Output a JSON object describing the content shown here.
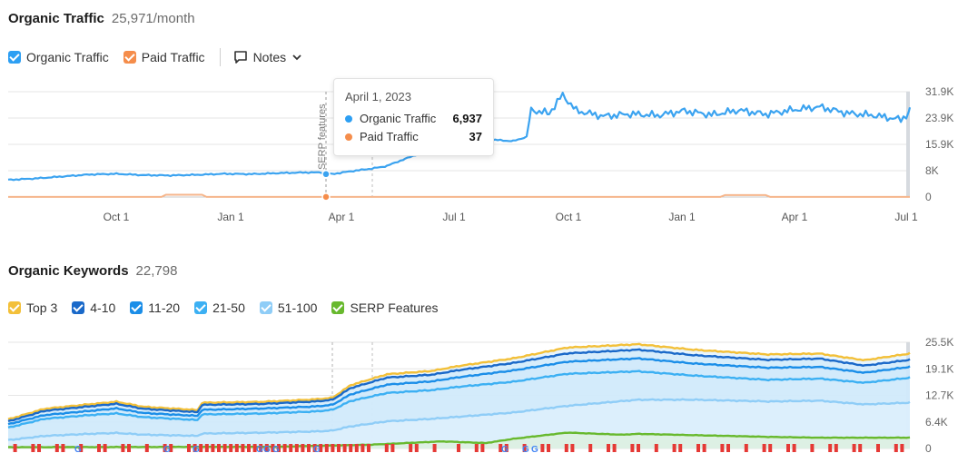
{
  "traffic": {
    "title": "Organic Traffic",
    "summary": "25,971/month",
    "legend": [
      {
        "label": "Organic Traffic",
        "color": "#2d9ff3"
      },
      {
        "label": "Paid Traffic",
        "color": "#f58d4b"
      }
    ],
    "notes_label": "Notes",
    "annotation_label": "SERP features",
    "tooltip": {
      "date": "April 1, 2023",
      "rows": [
        {
          "label": "Organic Traffic",
          "value": "6,937",
          "color": "#2d9ff3"
        },
        {
          "label": "Paid Traffic",
          "value": "37",
          "color": "#f58d4b"
        }
      ]
    }
  },
  "keywords": {
    "title": "Organic Keywords",
    "summary": "22,798",
    "legend": [
      {
        "label": "Top 3",
        "color": "#f3c039"
      },
      {
        "label": "4-10",
        "color": "#1a69c9"
      },
      {
        "label": "11-20",
        "color": "#1b8ee8"
      },
      {
        "label": "21-50",
        "color": "#3cb0f3"
      },
      {
        "label": "51-100",
        "color": "#8fcdf7"
      },
      {
        "label": "SERP Features",
        "color": "#68b92e"
      }
    ]
  },
  "chart_data": [
    {
      "type": "line",
      "title": "Organic Traffic",
      "x_ticks": [
        "Oct 1",
        "Jan 1",
        "Apr 1",
        "Jul 1",
        "Oct 1",
        "Jan 1",
        "Apr 1",
        "Jul 1"
      ],
      "y_ticks": [
        "31.9K",
        "23.9K",
        "15.9K",
        "8K",
        "0"
      ],
      "ylim": [
        0,
        31900
      ],
      "grid": true,
      "series": [
        {
          "name": "Organic Traffic",
          "color": "#3ba3f0",
          "points": [
            [
              0,
              5200
            ],
            [
              30,
              5600
            ],
            [
              60,
              6200
            ],
            [
              90,
              6800
            ],
            [
              120,
              7000
            ],
            [
              150,
              6600
            ],
            [
              180,
              6500
            ],
            [
              210,
              6700
            ],
            [
              240,
              7000
            ],
            [
              270,
              6900
            ],
            [
              300,
              7200
            ],
            [
              330,
              7400
            ],
            [
              350,
              7400
            ],
            [
              359,
              6937
            ],
            [
              380,
              7800
            ],
            [
              400,
              8500
            ],
            [
              420,
              9400
            ],
            [
              440,
              11500
            ],
            [
              460,
              13600
            ],
            [
              480,
              15300
            ],
            [
              500,
              16200
            ],
            [
              520,
              17000
            ],
            [
              540,
              17300
            ],
            [
              560,
              16900
            ],
            [
              575,
              18200
            ],
            [
              580,
              26500
            ],
            [
              600,
              25500
            ],
            [
              615,
              31000
            ],
            [
              630,
              26200
            ],
            [
              660,
              24600
            ],
            [
              690,
              25300
            ],
            [
              720,
              24900
            ],
            [
              750,
              26300
            ],
            [
              780,
              25100
            ],
            [
              810,
              26500
            ],
            [
              840,
              25300
            ],
            [
              870,
              26600
            ],
            [
              900,
              27500
            ],
            [
              930,
              25600
            ],
            [
              960,
              24900
            ],
            [
              990,
              23600
            ],
            [
              1000,
              25900
            ]
          ]
        },
        {
          "name": "Paid Traffic",
          "color": "#f58d4b",
          "points": [
            [
              0,
              30
            ],
            [
              170,
              40
            ],
            [
              175,
              700
            ],
            [
              215,
              700
            ],
            [
              220,
              40
            ],
            [
              359,
              37
            ],
            [
              790,
              40
            ],
            [
              795,
              600
            ],
            [
              840,
              600
            ],
            [
              845,
              40
            ],
            [
              1000,
              50
            ]
          ]
        }
      ]
    },
    {
      "type": "area",
      "title": "Organic Keywords",
      "x_ticks": [],
      "y_ticks": [
        "25.5K",
        "19.1K",
        "12.7K",
        "6.4K",
        "0"
      ],
      "ylim": [
        0,
        25500
      ],
      "grid": true,
      "series": [
        {
          "name": "Top 3",
          "color": "#f3c039",
          "points": [
            [
              0,
              7000
            ],
            [
              40,
              9500
            ],
            [
              90,
              10600
            ],
            [
              120,
              11200
            ],
            [
              150,
              10000
            ],
            [
              210,
              9200
            ],
            [
              215,
              11000
            ],
            [
              280,
              11200
            ],
            [
              340,
              11800
            ],
            [
              360,
              12200
            ],
            [
              380,
              15200
            ],
            [
              420,
              17800
            ],
            [
              470,
              18600
            ],
            [
              500,
              19800
            ],
            [
              560,
              21600
            ],
            [
              620,
              24200
            ],
            [
              700,
              25000
            ],
            [
              760,
              23700
            ],
            [
              840,
              22600
            ],
            [
              900,
              22800
            ],
            [
              950,
              21200
            ],
            [
              1000,
              22800
            ]
          ]
        },
        {
          "name": "4-10",
          "color": "#1a69c9",
          "points": [
            [
              0,
              6500
            ],
            [
              40,
              9000
            ],
            [
              90,
              10100
            ],
            [
              120,
              10700
            ],
            [
              150,
              9500
            ],
            [
              210,
              8700
            ],
            [
              215,
              10500
            ],
            [
              280,
              10700
            ],
            [
              340,
              11300
            ],
            [
              360,
              11700
            ],
            [
              380,
              14500
            ],
            [
              420,
              17000
            ],
            [
              470,
              17700
            ],
            [
              500,
              18800
            ],
            [
              560,
              20500
            ],
            [
              620,
              22800
            ],
            [
              700,
              23700
            ],
            [
              760,
              22400
            ],
            [
              840,
              21300
            ],
            [
              900,
              21600
            ],
            [
              950,
              19900
            ],
            [
              1000,
              21300
            ]
          ]
        },
        {
          "name": "11-20",
          "color": "#1b8ee8",
          "points": [
            [
              0,
              5800
            ],
            [
              40,
              8000
            ],
            [
              90,
              9000
            ],
            [
              120,
              9600
            ],
            [
              150,
              8500
            ],
            [
              210,
              7800
            ],
            [
              215,
              9300
            ],
            [
              280,
              9600
            ],
            [
              340,
              10100
            ],
            [
              360,
              10500
            ],
            [
              380,
              13000
            ],
            [
              420,
              15300
            ],
            [
              470,
              16100
            ],
            [
              500,
              17100
            ],
            [
              560,
              18700
            ],
            [
              620,
              20800
            ],
            [
              700,
              21600
            ],
            [
              760,
              20400
            ],
            [
              840,
              19400
            ],
            [
              900,
              19600
            ],
            [
              950,
              18200
            ],
            [
              1000,
              19600
            ]
          ]
        },
        {
          "name": "21-50",
          "color": "#3cb0f3",
          "points": [
            [
              0,
              5000
            ],
            [
              40,
              7100
            ],
            [
              90,
              8000
            ],
            [
              120,
              8400
            ],
            [
              150,
              7500
            ],
            [
              210,
              6800
            ],
            [
              215,
              8200
            ],
            [
              280,
              8400
            ],
            [
              340,
              8900
            ],
            [
              360,
              9300
            ],
            [
              380,
              11400
            ],
            [
              420,
              13300
            ],
            [
              470,
              14000
            ],
            [
              500,
              14800
            ],
            [
              560,
              16000
            ],
            [
              620,
              17900
            ],
            [
              700,
              18500
            ],
            [
              760,
              17500
            ],
            [
              840,
              16500
            ],
            [
              900,
              16800
            ],
            [
              950,
              15800
            ],
            [
              1000,
              17000
            ]
          ]
        },
        {
          "name": "51-100",
          "color": "#8fcdf7",
          "points": [
            [
              0,
              2000
            ],
            [
              40,
              3000
            ],
            [
              90,
              3500
            ],
            [
              120,
              3700
            ],
            [
              150,
              3300
            ],
            [
              210,
              3000
            ],
            [
              215,
              3600
            ],
            [
              280,
              3800
            ],
            [
              340,
              4100
            ],
            [
              360,
              4300
            ],
            [
              380,
              5300
            ],
            [
              420,
              6500
            ],
            [
              470,
              7100
            ],
            [
              500,
              7600
            ],
            [
              560,
              8600
            ],
            [
              620,
              10200
            ],
            [
              700,
              11700
            ],
            [
              760,
              11700
            ],
            [
              840,
              11300
            ],
            [
              900,
              11500
            ],
            [
              950,
              10600
            ],
            [
              1000,
              11000
            ]
          ]
        },
        {
          "name": "SERP Features",
          "color": "#68b92e",
          "points": [
            [
              0,
              300
            ],
            [
              300,
              400
            ],
            [
              400,
              900
            ],
            [
              480,
              1700
            ],
            [
              530,
              1300
            ],
            [
              560,
              2300
            ],
            [
              620,
              3800
            ],
            [
              680,
              3300
            ],
            [
              700,
              3500
            ],
            [
              760,
              3200
            ],
            [
              840,
              2800
            ],
            [
              900,
              2600
            ],
            [
              1000,
              2600
            ]
          ]
        }
      ]
    }
  ]
}
